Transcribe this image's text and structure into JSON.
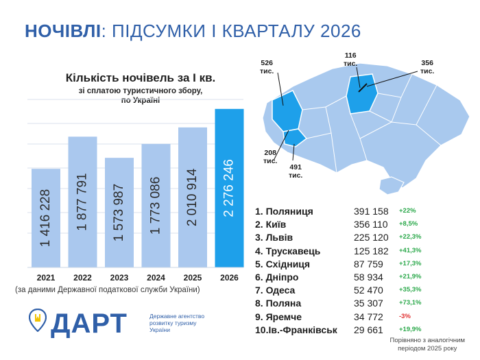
{
  "header": {
    "title_bold": "НОЧІВЛІ",
    "title_rest": ": ПІДСУМКИ І КВАРТАЛУ 2026"
  },
  "colors": {
    "bar": "#aac8ee",
    "bar_highlight": "#1ea0ea",
    "brand": "#2f5fa8",
    "map_base": "#a9c9ee",
    "map_highlight": "#1ea0ea",
    "positive": "#2aa84a",
    "negative": "#e03030"
  },
  "chart_data": {
    "type": "bar",
    "title": "Кількість ночівель за І кв.",
    "subtitle_line1": "зі сплатою туристичного збору,",
    "subtitle_line2": "по Україні",
    "categories": [
      "2021",
      "2022",
      "2023",
      "2024",
      "2025",
      "2026"
    ],
    "values": [
      1416228,
      1877791,
      1573987,
      1773086,
      2010914,
      2276246
    ],
    "value_labels": [
      "1 416 228",
      "1 877 791",
      "1 573 987",
      "1 773 086",
      "2 010 914",
      "2 276 246"
    ],
    "highlight_index": 5,
    "ylim": [
      0,
      2300000
    ],
    "grid": true
  },
  "source_note": "(за даними Державної податкової служби України)",
  "map": {
    "labels": [
      {
        "value": "526",
        "unit": "тис."
      },
      {
        "value": "116",
        "unit": "тис."
      },
      {
        "value": "356",
        "unit": "тис."
      },
      {
        "value": "208",
        "unit": "тис."
      },
      {
        "value": "491",
        "unit": "тис."
      }
    ]
  },
  "ranking": [
    {
      "name": "1.  Поляниця",
      "value": "391 158",
      "change": "+22%"
    },
    {
      "name": "2. Київ",
      "value": "356 110",
      "change": "+8,5%"
    },
    {
      "name": "3. Львів",
      "value": "225 120",
      "change": "+22,3%"
    },
    {
      "name": "4. Трускавець",
      "value": "125 182",
      "change": "+41,3%"
    },
    {
      "name": "5. Східниця",
      "value": "87 759",
      "change": "+17,3%"
    },
    {
      "name": "6. Дніпро",
      "value": "58 934",
      "change": "+21,9%"
    },
    {
      "name": "7. Одеса",
      "value": "52 470",
      "change": "+35,3%"
    },
    {
      "name": "8. Поляна",
      "value": "35 307",
      "change": "+73,1%"
    },
    {
      "name": "9. Яремче",
      "value": "34 772",
      "change": "-3%"
    },
    {
      "name": "10.Ів.-Франківськ",
      "value": "29 661",
      "change": "+19,9%"
    }
  ],
  "logo": {
    "name": "ДАРТ",
    "desc_line1": "Державне агентство",
    "desc_line2": "розвитку туризму",
    "desc_line3": "України"
  },
  "footer": {
    "line1": "Порівняно  з аналогічним",
    "line2": "періодом  2025 року"
  }
}
